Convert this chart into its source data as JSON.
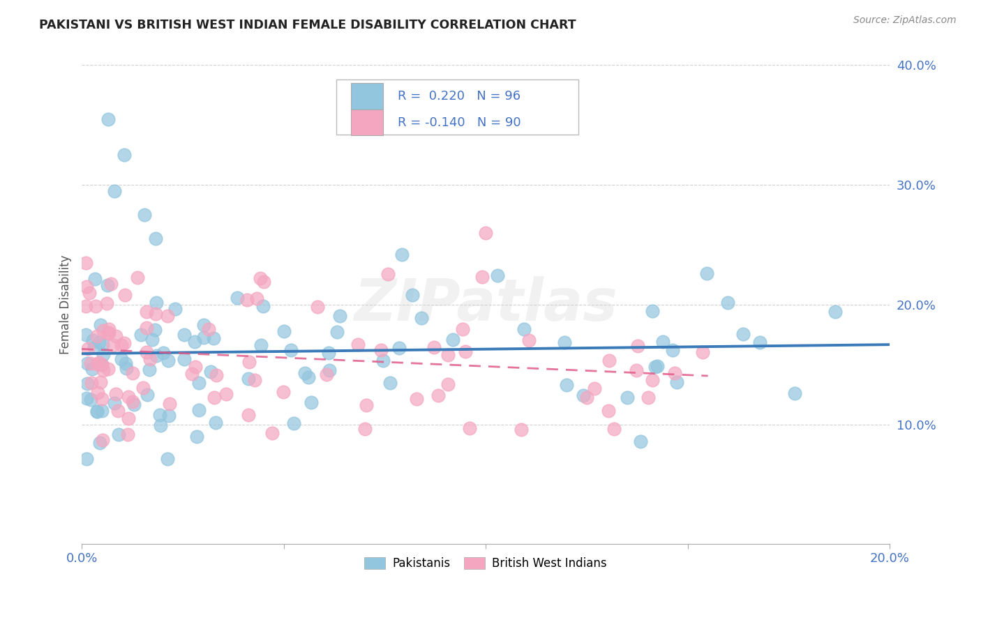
{
  "title": "PAKISTANI VS BRITISH WEST INDIAN FEMALE DISABILITY CORRELATION CHART",
  "source": "Source: ZipAtlas.com",
  "ylabel": "Female Disability",
  "xlim": [
    0.0,
    0.2
  ],
  "ylim": [
    0.0,
    0.4
  ],
  "xtick_vals": [
    0.0,
    0.2
  ],
  "xtick_labels": [
    "0.0%",
    "20.0%"
  ],
  "ytick_vals": [
    0.1,
    0.2,
    0.3,
    0.4
  ],
  "ytick_labels": [
    "10.0%",
    "20.0%",
    "30.0%",
    "40.0%"
  ],
  "watermark": "ZIPatlas",
  "blue_R": 0.22,
  "blue_N": 96,
  "pink_R": -0.14,
  "pink_N": 90,
  "blue_color": "#92c5de",
  "pink_color": "#f4a6c0",
  "blue_line_color": "#3a7ab8",
  "pink_line_color": "#e05c8a",
  "title_color": "#222222",
  "axis_color": "#4472c4",
  "tick_color": "#555555",
  "legend_label_blue": "Pakistanis",
  "legend_label_pink": "British West Indians",
  "background_color": "#ffffff",
  "grid_color": "#cccccc"
}
